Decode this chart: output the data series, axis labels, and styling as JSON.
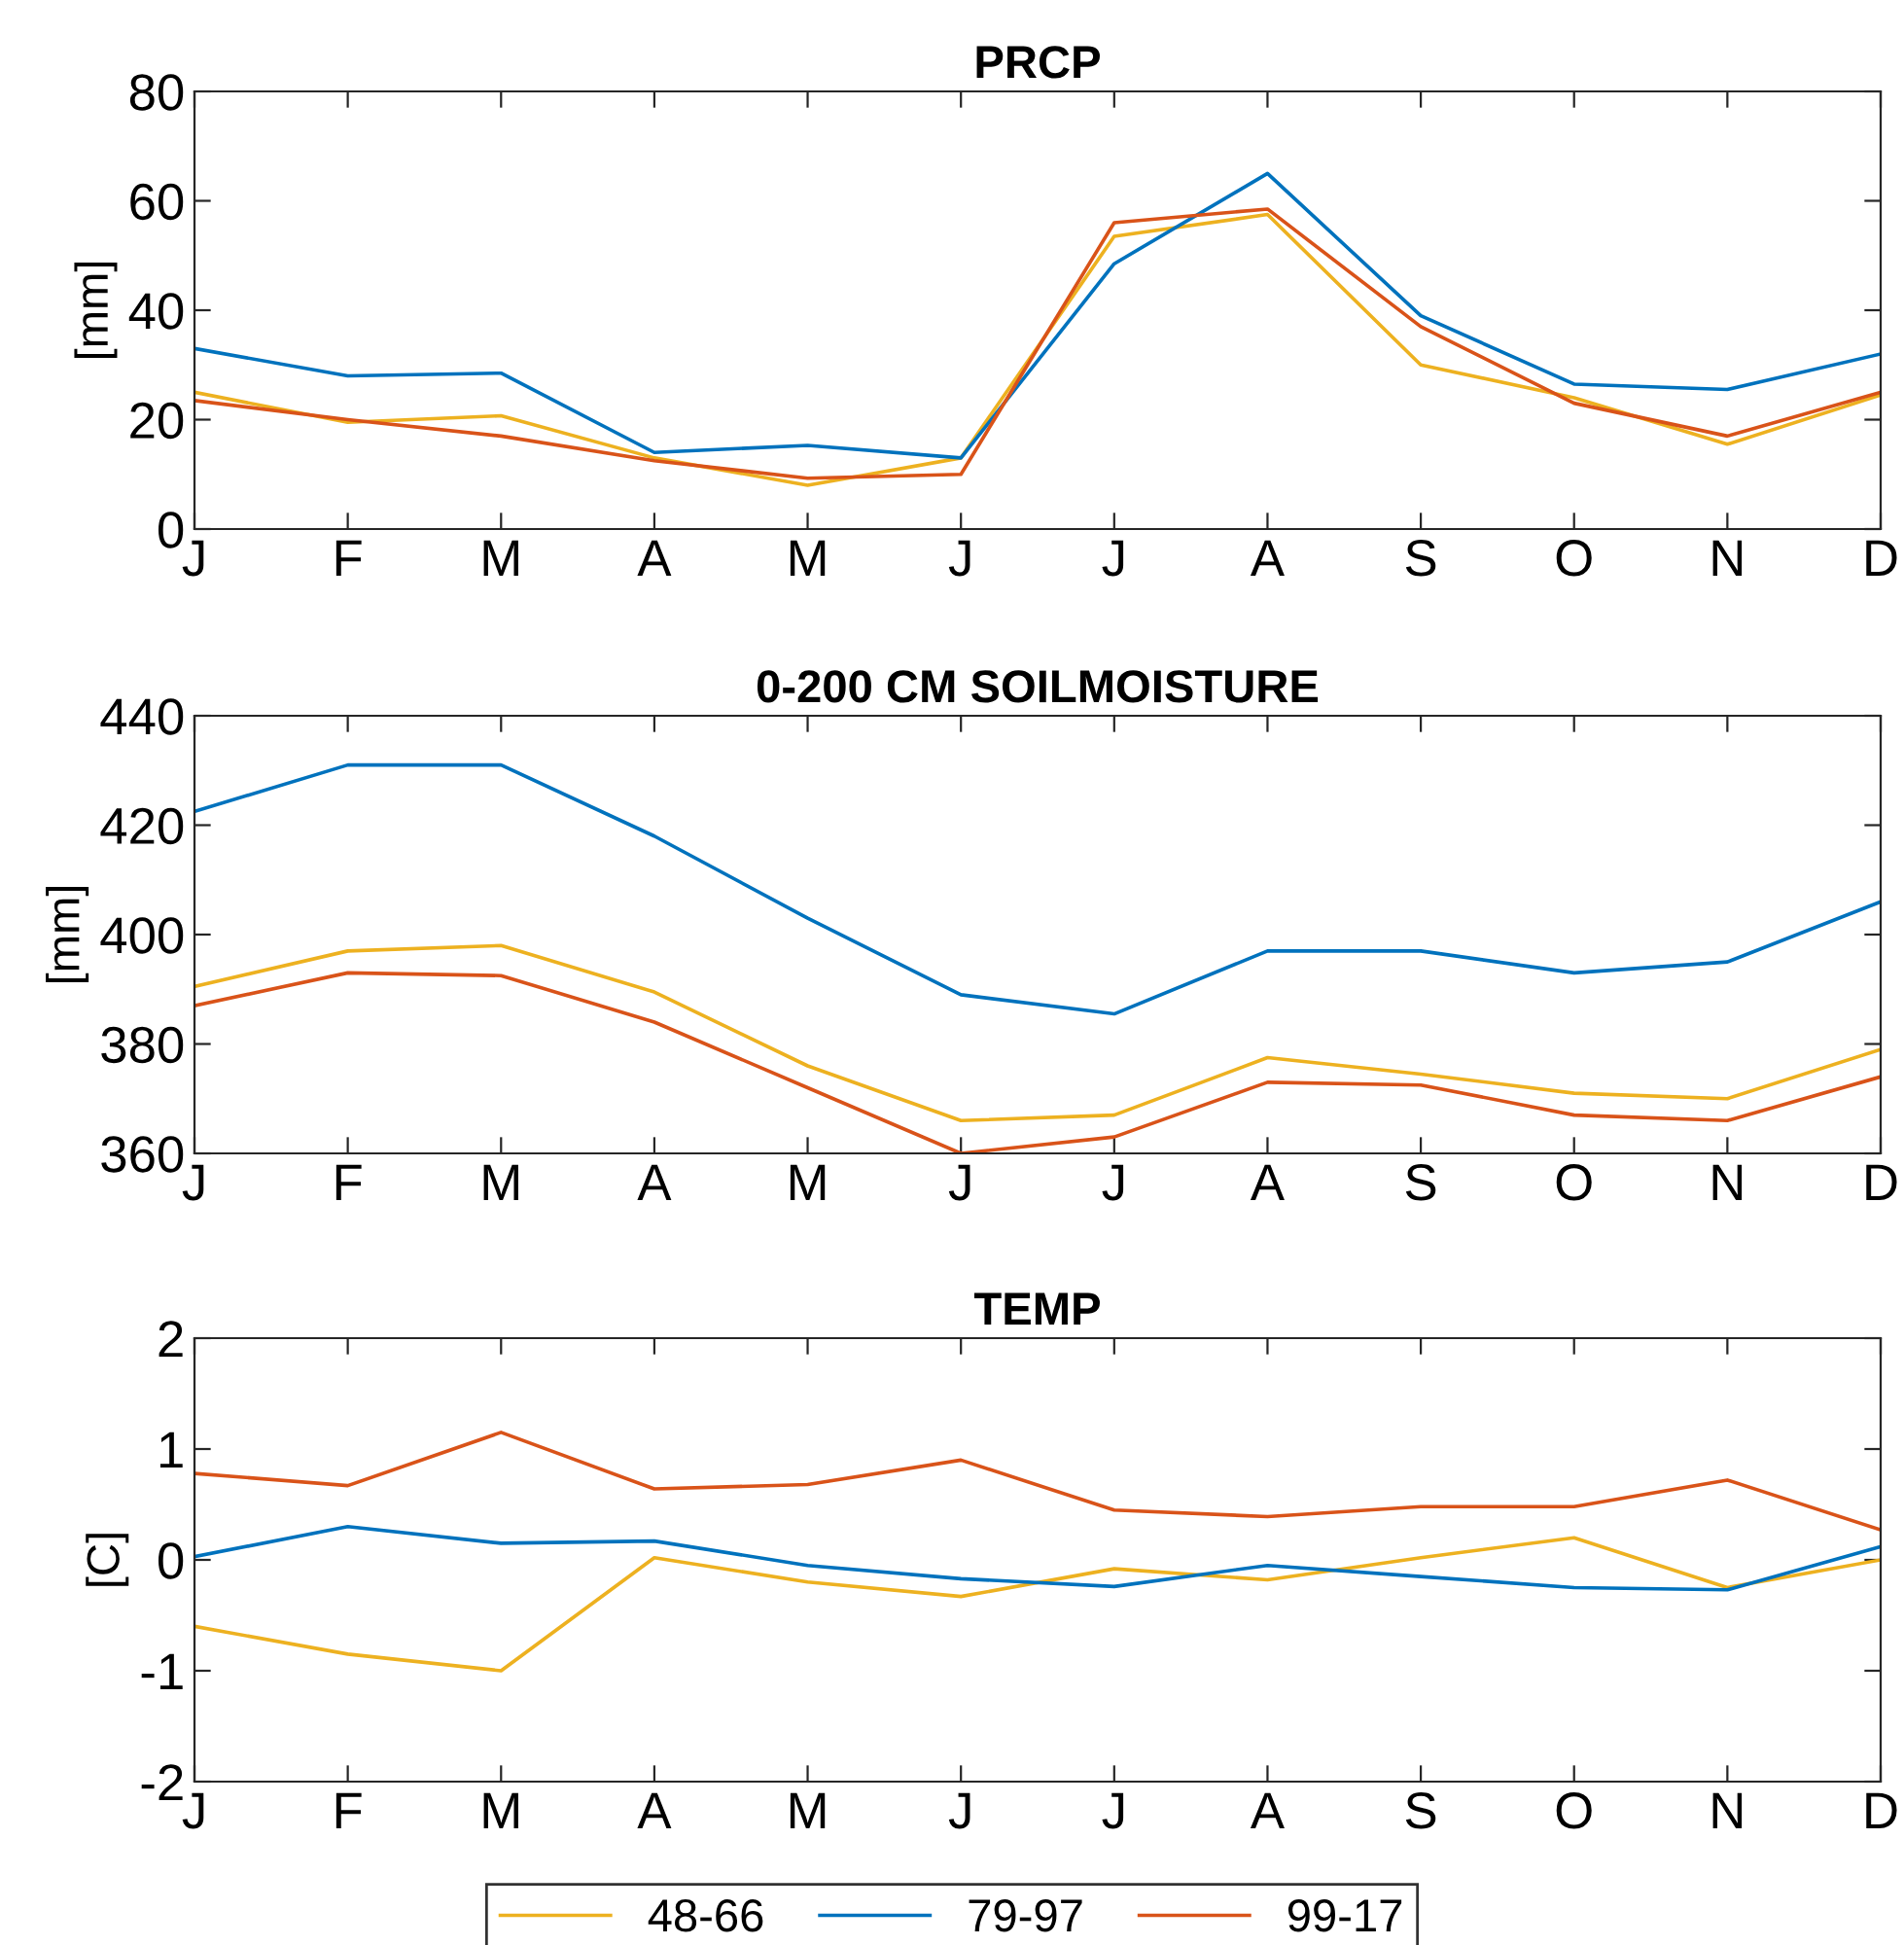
{
  "chart_data": [
    {
      "type": "line",
      "title": "PRCP",
      "ylabel": "[mm]",
      "categories": [
        "J",
        "F",
        "M",
        "A",
        "M",
        "J",
        "J",
        "A",
        "S",
        "O",
        "N",
        "D"
      ],
      "ylim": [
        0,
        80
      ],
      "yticks": [
        0,
        20,
        40,
        60,
        80
      ],
      "grid": false,
      "legend": "bottom",
      "series": [
        {
          "name": "48-66",
          "color": "#edb120",
          "values": [
            25,
            19.5,
            20.7,
            13,
            8,
            13,
            53.5,
            57.5,
            30,
            24,
            15.5,
            24.5
          ]
        },
        {
          "name": "79-97",
          "color": "#0072bd",
          "values": [
            33,
            28,
            28.5,
            14,
            15.3,
            13,
            48.5,
            65,
            39,
            26.5,
            25.5,
            32
          ]
        },
        {
          "name": "99-17",
          "color": "#d95319",
          "values": [
            23.5,
            20,
            17,
            12.5,
            9.3,
            10,
            56,
            58.5,
            37,
            23,
            17,
            25
          ]
        }
      ]
    },
    {
      "type": "line",
      "title": "0-200 CM SOILMOISTURE",
      "ylabel": "[mm]",
      "categories": [
        "J",
        "F",
        "M",
        "A",
        "M",
        "J",
        "J",
        "A",
        "S",
        "O",
        "N",
        "D"
      ],
      "ylim": [
        360,
        440
      ],
      "yticks": [
        360,
        380,
        400,
        420,
        440
      ],
      "grid": false,
      "legend": false,
      "series": [
        {
          "color": "#edb120",
          "values": [
            390.5,
            397,
            398,
            389.5,
            376,
            366,
            367,
            377.5,
            374.5,
            371,
            370,
            379
          ]
        },
        {
          "color": "#0072bd",
          "values": [
            422.5,
            431,
            431,
            418,
            403,
            389,
            385.5,
            397,
            397,
            393,
            395,
            406
          ]
        },
        {
          "color": "#d95319",
          "values": [
            387,
            393,
            392.5,
            384,
            372,
            360,
            363,
            373,
            372.5,
            367,
            366,
            374
          ]
        }
      ]
    },
    {
      "type": "line",
      "title": "TEMP",
      "ylabel": "[C]",
      "categories": [
        "J",
        "F",
        "M",
        "A",
        "M",
        "J",
        "J",
        "A",
        "S",
        "O",
        "N",
        "D"
      ],
      "ylim": [
        -2,
        2
      ],
      "yticks": [
        -2,
        -1,
        0,
        1,
        2
      ],
      "grid": false,
      "legend": false,
      "series": [
        {
          "color": "#edb120",
          "values": [
            -0.6,
            -0.85,
            -1.0,
            0.02,
            -0.2,
            -0.33,
            -0.08,
            -0.18,
            0.02,
            0.2,
            -0.25,
            0
          ]
        },
        {
          "color": "#0072bd",
          "values": [
            0.03,
            0.3,
            0.15,
            0.17,
            -0.05,
            -0.17,
            -0.24,
            -0.05,
            -0.15,
            -0.25,
            -0.27,
            0.12
          ]
        },
        {
          "color": "#d95319",
          "values": [
            0.78,
            0.67,
            1.15,
            0.64,
            0.68,
            0.9,
            0.45,
            0.39,
            0.48,
            0.48,
            0.72,
            0.27
          ]
        }
      ]
    }
  ]
}
